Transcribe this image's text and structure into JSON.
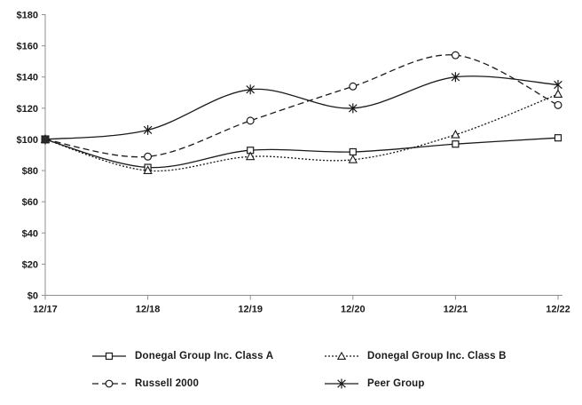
{
  "chart_data": {
    "type": "line",
    "title": "",
    "xlabel": "",
    "ylabel": "",
    "categories": [
      "12/17",
      "12/18",
      "12/19",
      "12/20",
      "12/21",
      "12/22"
    ],
    "y_ticks": [
      "$0",
      "$20",
      "$40",
      "$60",
      "$80",
      "$100",
      "$120",
      "$140",
      "$160",
      "$180"
    ],
    "ylim": [
      0,
      180
    ],
    "y_step": 20,
    "grid": false,
    "smoothed_lines": true,
    "legend_position": "bottom",
    "series": [
      {
        "name": "Donegal Group Inc. Class A",
        "marker": "square",
        "line_style": "solid",
        "values": [
          100,
          82,
          93,
          92,
          97,
          101
        ]
      },
      {
        "name": "Donegal Group Inc. Class B",
        "marker": "triangle",
        "line_style": "dotted",
        "values": [
          100,
          80,
          89,
          87,
          103,
          129
        ]
      },
      {
        "name": "Russell 2000",
        "marker": "circle",
        "line_style": "dashed",
        "values": [
          100,
          89,
          112,
          134,
          154,
          122
        ]
      },
      {
        "name": "Peer Group",
        "marker": "star",
        "line_style": "solid",
        "values": [
          100,
          106,
          132,
          120,
          140,
          135
        ]
      }
    ],
    "colors": {
      "line": "#1a1a1a",
      "axis": "#8f8f8f",
      "text": "#1a1a1a",
      "marker_fill": "#ffffff",
      "background": "#ffffff"
    }
  }
}
